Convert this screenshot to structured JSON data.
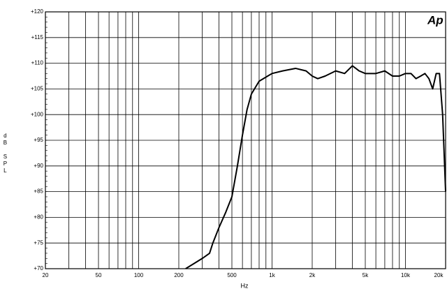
{
  "chart_data": {
    "type": "line",
    "xlabel": "Hz",
    "ylabel": "dB SPL",
    "logo": "Ap",
    "log_x": true,
    "grid": true,
    "color": "#000000",
    "xlim": [
      20,
      20000
    ],
    "ylim": [
      70,
      120
    ],
    "xticks": [
      20,
      50,
      100,
      200,
      500,
      {
        "value": 1000,
        "label": "1k"
      },
      {
        "value": 2000,
        "label": "2k"
      },
      {
        "value": 5000,
        "label": "5k"
      },
      {
        "value": 10000,
        "label": "10k"
      },
      {
        "value": 20000,
        "label": "20k"
      }
    ],
    "xminor": [
      30,
      40,
      60,
      70,
      80,
      90,
      300,
      400,
      600,
      700,
      800,
      900,
      3000,
      4000,
      6000,
      7000,
      8000,
      9000
    ],
    "yticks": [
      {
        "value": 70,
        "label": "+70"
      },
      {
        "value": 75,
        "label": "+75"
      },
      {
        "value": 80,
        "label": "+80"
      },
      {
        "value": 85,
        "label": "+85"
      },
      {
        "value": 90,
        "label": "+90"
      },
      {
        "value": 95,
        "label": "+95"
      },
      {
        "value": 100,
        "label": "+100"
      },
      {
        "value": 105,
        "label": "+105"
      },
      {
        "value": 110,
        "label": "+110"
      },
      {
        "value": 115,
        "label": "+115"
      },
      {
        "value": 120,
        "label": "+120"
      }
    ],
    "x": [
      225,
      260,
      300,
      340,
      360,
      400,
      450,
      500,
      550,
      600,
      650,
      700,
      800,
      900,
      1000,
      1200,
      1500,
      1800,
      2000,
      2200,
      2500,
      3000,
      3500,
      4000,
      4500,
      5000,
      6000,
      7000,
      8000,
      9000,
      10000,
      11000,
      12000,
      13000,
      14000,
      15000,
      16000,
      17000,
      18000,
      19000,
      20000
    ],
    "y": [
      70,
      71,
      72,
      73,
      75,
      78,
      81,
      84,
      90,
      96,
      101,
      104,
      106.5,
      107.3,
      108,
      108.5,
      109,
      108.5,
      107.5,
      107,
      107.5,
      108.5,
      108,
      109.5,
      108.5,
      108,
      108,
      108.5,
      107.5,
      107.5,
      108,
      108,
      107,
      107.5,
      108,
      107,
      105,
      108,
      108,
      100,
      85
    ]
  }
}
